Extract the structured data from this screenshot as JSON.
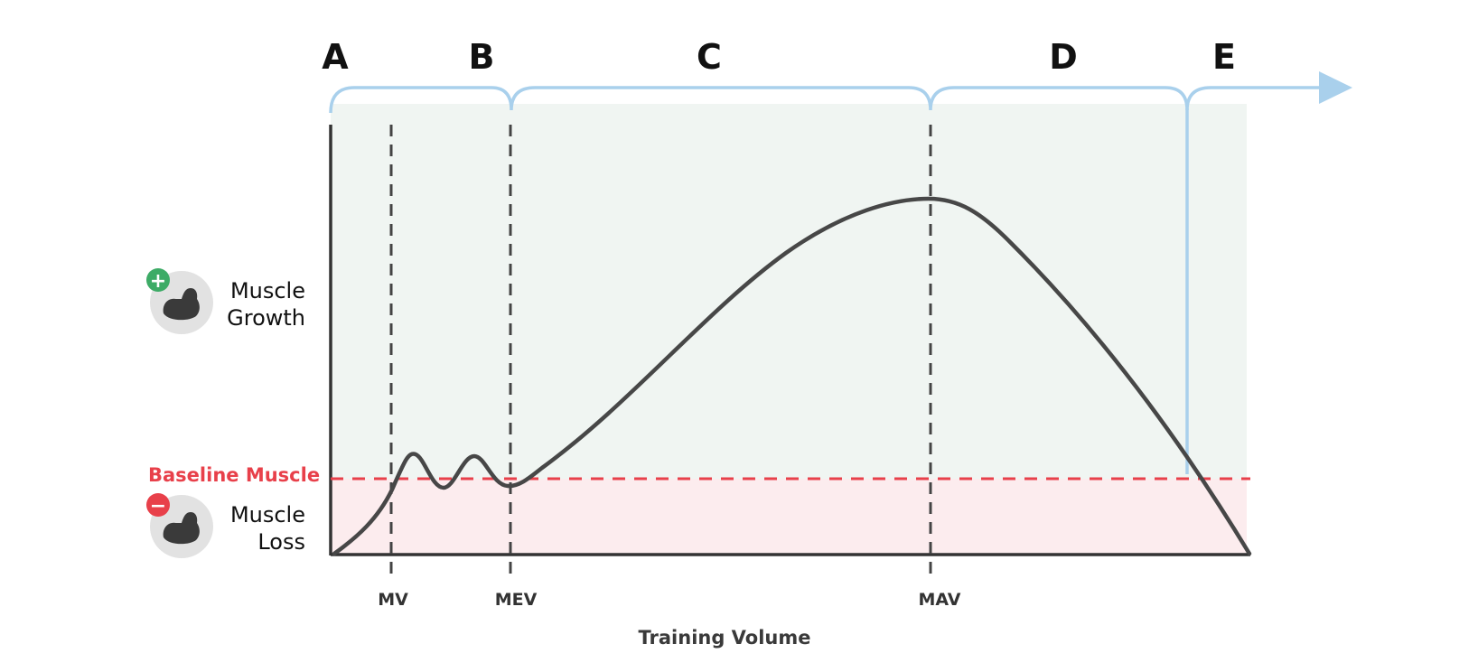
{
  "regions": [
    "A",
    "B",
    "C",
    "D",
    "E"
  ],
  "markers": [
    "MV",
    "MEV",
    "MAV"
  ],
  "axis": {
    "x_title": "Training Volume"
  },
  "legend": {
    "growth": {
      "line1": "Muscle",
      "line2": "Growth",
      "sign": "+",
      "icon": "flexed-bicep-icon"
    },
    "loss": {
      "line1": "Muscle",
      "line2": "Loss",
      "sign": "−",
      "icon": "flexed-bicep-icon"
    }
  },
  "baseline": {
    "label": "Baseline Muscle"
  },
  "colors": {
    "growth_zone": "#f0f5f2",
    "loss_zone": "#fcecee",
    "baseline": "#e8404a",
    "curve": "#474747",
    "bracket": "#a9d0ec",
    "axis": "#333333",
    "plus_badge": "#3dab66",
    "minus_badge": "#e8404a",
    "icon_circle": "#e2e2e2"
  }
}
